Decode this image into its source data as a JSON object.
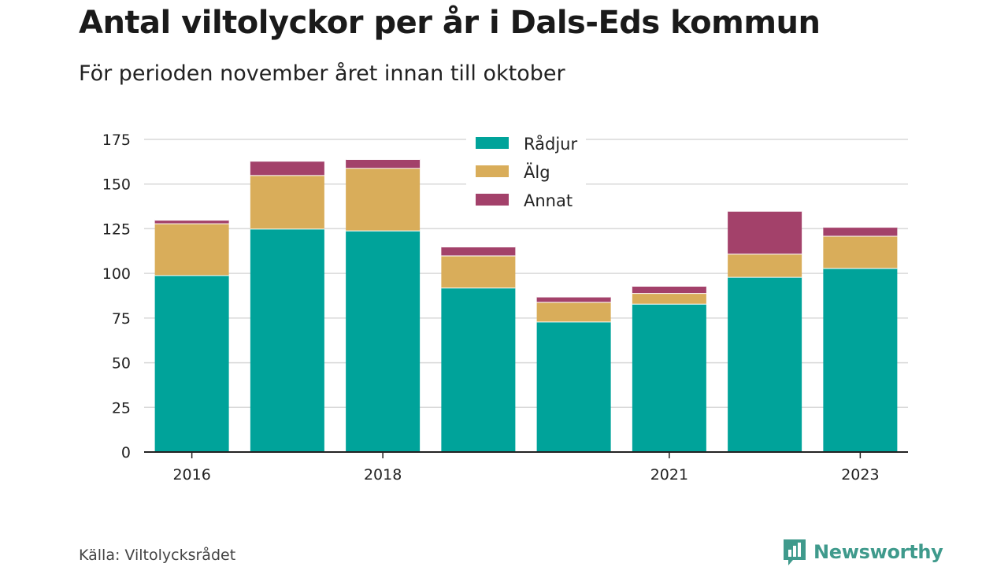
{
  "header": {
    "title": "Antal viltolyckor per år i Dals-Eds kommun",
    "subtitle": "För perioden november året innan till oktober"
  },
  "footer": {
    "source": "Källa: Viltolycksrådet",
    "brand": "Newsworthy",
    "brand_icon": "newsworthy-logo-icon",
    "brand_color": "#3f9a8c"
  },
  "chart_data": {
    "type": "bar",
    "stacked": true,
    "title": "Antal viltolyckor per år i Dals-Eds kommun",
    "subtitle": "För perioden november året innan till oktober",
    "categories": [
      "2016",
      "2017",
      "2018",
      "2019",
      "2020",
      "2021",
      "2022",
      "2023"
    ],
    "x_tick_labels": [
      "2016",
      "",
      "2018",
      "",
      "",
      "2021",
      "",
      "2023"
    ],
    "series": [
      {
        "name": "Rådjur",
        "color": "#00a39a",
        "values": [
          99,
          125,
          124,
          92,
          73,
          83,
          98,
          103
        ]
      },
      {
        "name": "Älg",
        "color": "#d9ad5a",
        "values": [
          29,
          30,
          35,
          18,
          11,
          6,
          13,
          18
        ]
      },
      {
        "name": "Annat",
        "color": "#a3416a",
        "values": [
          2,
          8,
          5,
          5,
          3,
          4,
          24,
          5
        ]
      }
    ],
    "ylim": [
      0,
      175
    ],
    "yticks": [
      0,
      25,
      50,
      75,
      100,
      125,
      150,
      175
    ],
    "xlabel": "",
    "ylabel": "",
    "grid": true,
    "legend_position": "top-center"
  }
}
